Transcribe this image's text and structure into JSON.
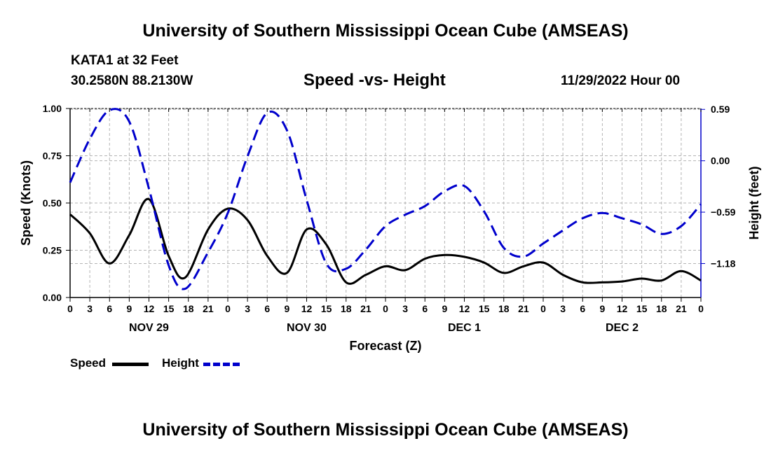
{
  "page": {
    "top_title": "University of Southern Mississippi Ocean Cube (AMSEAS)",
    "station": "KATA1 at 32 Feet",
    "coords": "30.2580N  88.2130W",
    "subtitle": "Speed -vs- Height",
    "datetime": "11/29/2022 Hour 00",
    "bottom_title": "University of Southern Mississippi Ocean Cube (AMSEAS)"
  },
  "legend": {
    "speed_label": "Speed",
    "height_label": "Height"
  },
  "colors": {
    "speed": "#000000",
    "height": "#0000cc",
    "grid": "#b4b4b4"
  },
  "chart_data": {
    "type": "line",
    "title": "Speed -vs- Height",
    "xlabel": "Forecast (Z)",
    "ylabel": "Speed (Knots)",
    "y2label": "Height (feet)",
    "xlim": [
      0,
      96
    ],
    "ylim": [
      0,
      1
    ],
    "y2lim": [
      -1.57,
      0.6
    ],
    "x_ticks": [
      0,
      3,
      6,
      9,
      12,
      15,
      18,
      21,
      24,
      27,
      30,
      33,
      36,
      39,
      42,
      45,
      48,
      51,
      54,
      57,
      60,
      63,
      66,
      69,
      72,
      75,
      78,
      81,
      84,
      87,
      90,
      93,
      96
    ],
    "x_tick_labels": [
      "0",
      "3",
      "6",
      "9",
      "12",
      "15",
      "18",
      "21",
      "0",
      "3",
      "6",
      "9",
      "12",
      "15",
      "18",
      "21",
      "0",
      "3",
      "6",
      "9",
      "12",
      "15",
      "18",
      "21",
      "0",
      "3",
      "6",
      "9",
      "12",
      "15",
      "18",
      "21",
      "0"
    ],
    "day_labels": [
      {
        "x": 12,
        "label": "NOV 29"
      },
      {
        "x": 36,
        "label": "NOV 30"
      },
      {
        "x": 60,
        "label": "DEC 1"
      },
      {
        "x": 84,
        "label": "DEC 2"
      }
    ],
    "y_ticks": [
      0,
      0.25,
      0.5,
      0.75,
      1.0
    ],
    "y_tick_labels": [
      "0.00",
      "0.25",
      "0.50",
      "0.75",
      "1.00"
    ],
    "y2_ticks": [
      0.59,
      0.0,
      -0.59,
      -1.18
    ],
    "y2_tick_labels": [
      "0.59",
      "0.00",
      "−0.59",
      "−1.18"
    ],
    "series": [
      {
        "name": "Speed",
        "axis": "left",
        "x": [
          0,
          3,
          6,
          9,
          12,
          15,
          17.5,
          21,
          24,
          27,
          30,
          33,
          36,
          39,
          42,
          45,
          48,
          51,
          54,
          57,
          60,
          63,
          66,
          69,
          72,
          75,
          78,
          81,
          84,
          87,
          90,
          93,
          96
        ],
        "values": [
          0.44,
          0.34,
          0.18,
          0.33,
          0.52,
          0.22,
          0.105,
          0.36,
          0.47,
          0.41,
          0.22,
          0.13,
          0.36,
          0.28,
          0.08,
          0.12,
          0.165,
          0.145,
          0.205,
          0.225,
          0.215,
          0.185,
          0.13,
          0.165,
          0.185,
          0.12,
          0.08,
          0.08,
          0.085,
          0.1,
          0.09,
          0.14,
          0.09
        ]
      },
      {
        "name": "Height",
        "axis": "right",
        "x": [
          0,
          3,
          6,
          9,
          12,
          15,
          17.5,
          21,
          24,
          27,
          30,
          33,
          36,
          39,
          42,
          45,
          48,
          51,
          54,
          57,
          60,
          63,
          66,
          69,
          72,
          75,
          78,
          81,
          84,
          87,
          90,
          93,
          96
        ],
        "values": [
          -0.25,
          0.25,
          0.58,
          0.45,
          -0.32,
          -1.2,
          -1.47,
          -1.05,
          -0.6,
          0.05,
          0.55,
          0.35,
          -0.45,
          -1.18,
          -1.24,
          -1.02,
          -0.75,
          -0.62,
          -0.52,
          -0.35,
          -0.29,
          -0.58,
          -1.0,
          -1.1,
          -0.95,
          -0.8,
          -0.66,
          -0.6,
          -0.66,
          -0.73,
          -0.84,
          -0.75,
          -0.5
        ]
      }
    ]
  }
}
